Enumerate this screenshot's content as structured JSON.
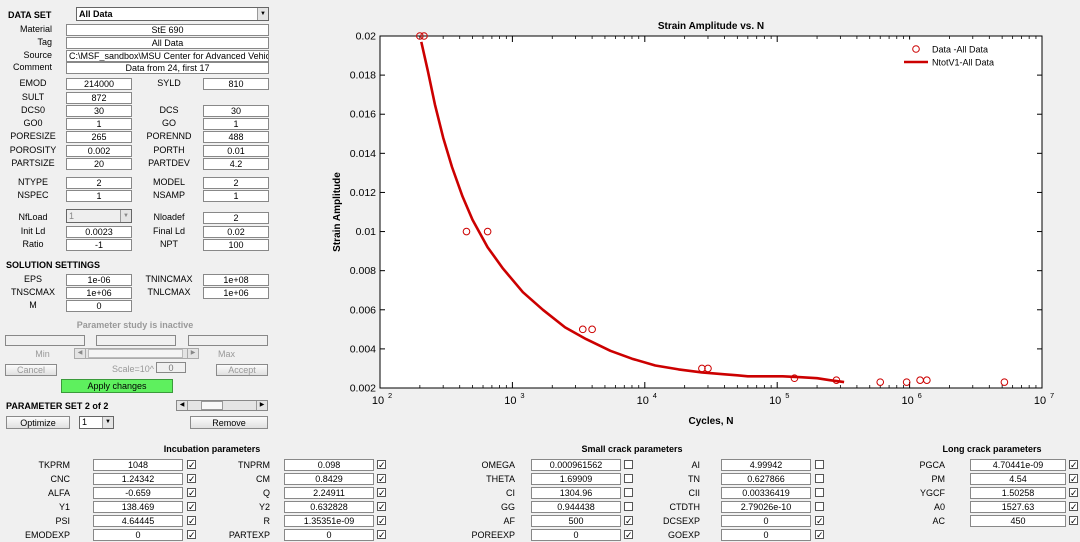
{
  "dataset": {
    "header": "DATA SET",
    "selected": "All Data",
    "material_label": "Material",
    "material": "StE 690",
    "tag_label": "Tag",
    "tag": "All Data",
    "source_label": "Source",
    "source": "C:\\MSF_sandbox\\MSU Center for Advanced Vehicle",
    "comment_label": "Comment",
    "comment": "Data from 24, first 17"
  },
  "props": {
    "emod_label": "EMOD",
    "emod": "214000",
    "syld_label": "SYLD",
    "syld": "810",
    "sult_label": "SULT",
    "sult": "872",
    "dcs0_label": "DCS0",
    "dcs0": "30",
    "dcs_label": "DCS",
    "dcs": "30",
    "go0_label": "GO0",
    "go0": "1",
    "go_label": "GO",
    "go": "1",
    "poresize_label": "PORESIZE",
    "poresize": "265",
    "porennd_label": "PORENND",
    "porennd": "488",
    "porosity_label": "POROSITY",
    "porosity": "0.002",
    "porth_label": "PORTH",
    "porth": "0.01",
    "partsize_label": "PARTSIZE",
    "partsize": "20",
    "partdev_label": "PARTDEV",
    "partdev": "4.2",
    "ntype_label": "NTYPE",
    "ntype": "2",
    "model_label": "MODEL",
    "model": "2",
    "nspec_label": "NSPEC",
    "nspec": "1",
    "nsamp_label": "NSAMP",
    "nsamp": "1",
    "nfload_label": "NfLoad",
    "nfload": "1",
    "nloadef_label": "Nloadef",
    "nloadef": "2",
    "initld_label": "Init Ld",
    "initld": "0.0023",
    "finalld_label": "Final Ld",
    "finalld": "0.02",
    "ratio_label": "Ratio",
    "ratio": "-1",
    "npt_label": "NPT",
    "npt": "100"
  },
  "solution": {
    "header": "SOLUTION SETTINGS",
    "eps_label": "EPS",
    "eps": "1e-06",
    "tnincmax_label": "TNINCMAX",
    "tnincmax": "1e+08",
    "tnscmax_label": "TNSCMAX",
    "tnscmax": "1e+06",
    "tnlcmax_label": "TNLCMAX",
    "tnlcmax": "1e+06",
    "m_label": "M",
    "m": "0"
  },
  "param_study": {
    "status": "Parameter study is inactive",
    "min_label": "Min",
    "max_label": "Max",
    "scale_label": "Scale=10^",
    "scale_value": "0",
    "cancel": "Cancel",
    "accept": "Accept",
    "apply": "Apply changes"
  },
  "param_set": {
    "title": "PARAMETER SET 2 of 2",
    "optimize": "Optimize",
    "remove": "Remove",
    "select": "1"
  },
  "chart_data": {
    "type": "scatter",
    "title": "Strain Amplitude vs. N",
    "xlabel": "Cycles, N",
    "ylabel": "Strain Amplitude",
    "xscale": "log",
    "xlim": [
      100,
      10000000
    ],
    "ylim": [
      0.002,
      0.02
    ],
    "x_ticks": [
      "10",
      "10",
      "10",
      "10",
      "10",
      "10"
    ],
    "x_tick_exps": [
      "2",
      "3",
      "4",
      "5",
      "6",
      "7"
    ],
    "y_ticks": [
      "0.002",
      "0.004",
      "0.006",
      "0.008",
      "0.01",
      "0.012",
      "0.014",
      "0.016",
      "0.018",
      "0.02"
    ],
    "legend": [
      "Data -All Data",
      "NtotV1-All Data"
    ],
    "legend_position": "top-right",
    "series": [
      {
        "name": "Data -All Data",
        "kind": "markers",
        "color": "#cc0000",
        "x": [
          200,
          215,
          450,
          650,
          3400,
          4000,
          27000,
          30000,
          135000,
          280000,
          600000,
          950000,
          1200000,
          1350000,
          5200000
        ],
        "y": [
          0.02,
          0.02,
          0.01,
          0.01,
          0.005,
          0.005,
          0.003,
          0.003,
          0.0025,
          0.0024,
          0.0023,
          0.0023,
          0.0024,
          0.0024,
          0.0023
        ]
      },
      {
        "name": "NtotV1-All Data",
        "kind": "line",
        "color": "#cc0000",
        "x": [
          205,
          230,
          260,
          300,
          350,
          420,
          500,
          650,
          850,
          1200,
          1700,
          2500,
          3600,
          5500,
          8000,
          12000,
          18000,
          27000,
          40000,
          50000,
          60000,
          80000,
          110000,
          150000,
          200000,
          250000,
          320000
        ],
        "y": [
          0.0197,
          0.0182,
          0.0165,
          0.0148,
          0.0133,
          0.0118,
          0.0106,
          0.0092,
          0.0081,
          0.0069,
          0.006,
          0.0051,
          0.0045,
          0.0039,
          0.0035,
          0.00315,
          0.00295,
          0.0028,
          0.0027,
          0.00265,
          0.0026,
          0.0026,
          0.0026,
          0.00255,
          0.0025,
          0.0024,
          0.0023
        ]
      }
    ]
  },
  "incubation": {
    "header": "Incubation parameters",
    "left": [
      {
        "label": "TKPRM",
        "value": "1048",
        "checked": true
      },
      {
        "label": "CNC",
        "value": "1.24342",
        "checked": true
      },
      {
        "label": "ALFA",
        "value": "-0.659",
        "checked": true
      },
      {
        "label": "Y1",
        "value": "138.469",
        "checked": true
      },
      {
        "label": "PSI",
        "value": "4.64445",
        "checked": true
      },
      {
        "label": "EMODEXP",
        "value": "0",
        "checked": true
      }
    ],
    "right": [
      {
        "label": "TNPRM",
        "value": "0.098",
        "checked": true
      },
      {
        "label": "CM",
        "value": "0.8429",
        "checked": true
      },
      {
        "label": "Q",
        "value": "2.24911",
        "checked": true
      },
      {
        "label": "Y2",
        "value": "0.632828",
        "checked": true
      },
      {
        "label": "R",
        "value": "1.35351e-09",
        "checked": true
      },
      {
        "label": "PARTEXP",
        "value": "0",
        "checked": true
      }
    ]
  },
  "small_crack": {
    "header": "Small crack parameters",
    "left": [
      {
        "label": "OMEGA",
        "value": "0.000961562",
        "checked": false
      },
      {
        "label": "THETA",
        "value": "1.69909",
        "checked": false
      },
      {
        "label": "CI",
        "value": "1304.96",
        "checked": false
      },
      {
        "label": "GG",
        "value": "0.944438",
        "checked": false
      },
      {
        "label": "AF",
        "value": "500",
        "checked": true
      },
      {
        "label": "POREEXP",
        "value": "0",
        "checked": true
      }
    ],
    "right": [
      {
        "label": "AI",
        "value": "4.99942",
        "checked": false
      },
      {
        "label": "TN",
        "value": "0.627866",
        "checked": false
      },
      {
        "label": "CII",
        "value": "0.00336419",
        "checked": false
      },
      {
        "label": "CTDTH",
        "value": "2.79026e-10",
        "checked": false
      },
      {
        "label": "DCSEXP",
        "value": "0",
        "checked": true
      },
      {
        "label": "GOEXP",
        "value": "0",
        "checked": true
      }
    ]
  },
  "long_crack": {
    "header": "Long crack parameters",
    "rows": [
      {
        "label": "PGCA",
        "value": "4.70441e-09",
        "checked": true
      },
      {
        "label": "PM",
        "value": "4.54",
        "checked": true
      },
      {
        "label": "YGCF",
        "value": "1.50258",
        "checked": true
      },
      {
        "label": "A0",
        "value": "1527.63",
        "checked": true
      },
      {
        "label": "AC",
        "value": "450",
        "checked": true
      }
    ]
  }
}
